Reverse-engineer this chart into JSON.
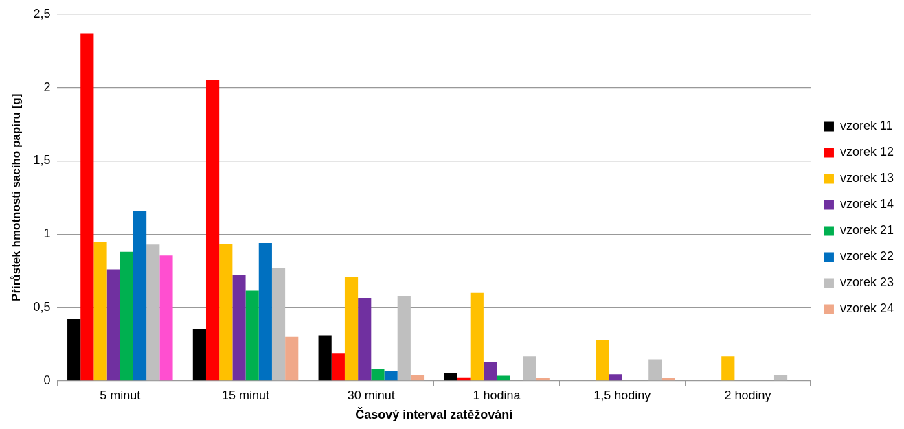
{
  "chart_data": {
    "type": "bar",
    "xlabel": "Časový interval zatěžování",
    "ylabel": "Přírůstek hmotnosti sacího papíru [g]",
    "categories": [
      "5 minut",
      "15 minut",
      "30 minut",
      "1 hodina",
      "1,5 hodiny",
      "2 hodiny"
    ],
    "ylim": [
      0,
      2.5
    ],
    "yticks": [
      0,
      {
        "value": 0.5,
        "label": "0,5"
      },
      1,
      {
        "value": 1.5,
        "label": "1,5"
      },
      2,
      {
        "value": 2.5,
        "label": "2,5"
      }
    ],
    "grid": "y",
    "legend": "right",
    "series": [
      {
        "name": "vzorek 11",
        "color": "#000000",
        "values": [
          0.42,
          0.35,
          0.31,
          0.05,
          0,
          0
        ]
      },
      {
        "name": "vzorek 12",
        "color": "#ff0000",
        "values": [
          2.37,
          2.05,
          0.185,
          0.024,
          0,
          0
        ]
      },
      {
        "name": "vzorek 13",
        "color": "#ffc000",
        "values": [
          0.945,
          0.935,
          0.71,
          0.6,
          0.28,
          0.167
        ]
      },
      {
        "name": "vzorek 14",
        "color": "#7030a0",
        "values": [
          0.76,
          0.72,
          0.565,
          0.125,
          0.045,
          0
        ]
      },
      {
        "name": "vzorek 21",
        "color": "#00b050",
        "values": [
          0.88,
          0.615,
          0.08,
          0.034,
          0,
          0
        ]
      },
      {
        "name": "vzorek 22",
        "color": "#0070c0",
        "values": [
          1.16,
          0.94,
          0.065,
          0,
          0,
          0
        ]
      },
      {
        "name": "vzorek 23",
        "color": "#bfbfbf",
        "values": [
          0.93,
          0.77,
          0.58,
          0.167,
          0.146,
          0.036
        ]
      },
      {
        "name": "vzorek 24",
        "color": "#f0a889",
        "colors": [
          "#ff4fd0",
          "#f0a889",
          "#f0a889",
          "#f0a889",
          "#f0a889",
          "#f0a889"
        ],
        "values": [
          0.855,
          0.3,
          0.036,
          0.021,
          0.02,
          0
        ]
      }
    ]
  }
}
